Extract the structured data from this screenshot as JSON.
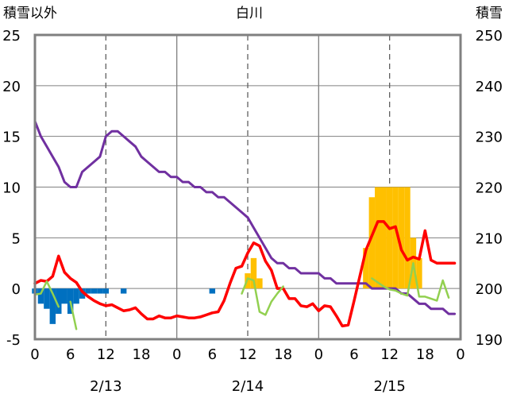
{
  "chart_data": {
    "type": "line",
    "title": "白川",
    "y_left_label": "積雪以外",
    "y_right_label": "積雪",
    "y_left_range": [
      -5,
      25
    ],
    "y_left_ticks": [
      -5,
      0,
      5,
      10,
      15,
      20,
      25
    ],
    "y_right_range": [
      190,
      250
    ],
    "y_right_ticks": [
      190,
      200,
      210,
      220,
      230,
      240,
      250
    ],
    "x_range_hours": [
      0,
      72
    ],
    "x_tick_labels": [
      "0",
      "6",
      "12",
      "18",
      "0",
      "6",
      "12",
      "18",
      "0",
      "6",
      "12",
      "18",
      "0"
    ],
    "date_labels": [
      "2/13",
      "2/14",
      "2/15"
    ],
    "grid": true,
    "colors": {
      "temperature": "#ff0000",
      "snow_depth": "#7030a0",
      "snowfall": "#ffc000",
      "rainfall": "#0070c0",
      "wind": "#92d050",
      "grid_solid": "#808080",
      "grid_dashed": "#606060",
      "frame": "#808080"
    },
    "series": [
      {
        "key": "snow_depth",
        "axis": "right",
        "kind": "line",
        "x": [
          0,
          1,
          2,
          3,
          4,
          5,
          6,
          7,
          8,
          9,
          10,
          11,
          12,
          13,
          14,
          15,
          16,
          17,
          18,
          19,
          20,
          21,
          22,
          23,
          24,
          25,
          26,
          27,
          28,
          29,
          30,
          31,
          32,
          33,
          34,
          35,
          36,
          37,
          38,
          39,
          40,
          41,
          42,
          43,
          44,
          45,
          46,
          47,
          48,
          49,
          50,
          51,
          52,
          53,
          54,
          55,
          56,
          57,
          58,
          59,
          60,
          61,
          62,
          63,
          64,
          65,
          66,
          67,
          68,
          69,
          70,
          71
        ],
        "values": [
          233,
          230,
          228,
          226,
          224,
          221,
          220,
          220,
          223,
          224,
          225,
          226,
          230,
          231,
          231,
          230,
          229,
          228,
          226,
          225,
          224,
          223,
          223,
          222,
          222,
          221,
          221,
          220,
          220,
          219,
          219,
          218,
          218,
          217,
          216,
          215,
          214,
          212,
          210,
          208,
          206,
          205,
          205,
          204,
          204,
          203,
          203,
          203,
          203,
          202,
          202,
          201,
          201,
          201,
          201,
          201,
          201,
          200,
          200,
          200,
          200,
          200,
          199,
          199,
          198,
          197,
          197,
          196,
          196,
          196,
          195,
          195
        ]
      },
      {
        "key": "temperature",
        "axis": "left",
        "kind": "line",
        "x": [
          0,
          1,
          2,
          3,
          4,
          5,
          6,
          7,
          8,
          9,
          10,
          11,
          12,
          13,
          14,
          15,
          16,
          17,
          18,
          19,
          20,
          21,
          22,
          23,
          24,
          25,
          26,
          27,
          28,
          29,
          30,
          31,
          32,
          33,
          34,
          35,
          36,
          37,
          38,
          39,
          40,
          41,
          42,
          43,
          44,
          45,
          46,
          47,
          48,
          49,
          50,
          51,
          52,
          53,
          54,
          55,
          56,
          57,
          58,
          59,
          60,
          61,
          62,
          63,
          64,
          65,
          66,
          67,
          68,
          69,
          70,
          71
        ],
        "values": [
          0.5,
          0.8,
          0.7,
          1.2,
          3.2,
          1.6,
          1.0,
          0.6,
          -0.3,
          -0.8,
          -1.2,
          -1.5,
          -1.7,
          -1.6,
          -1.9,
          -2.2,
          -2.1,
          -1.9,
          -2.5,
          -3.0,
          -3.0,
          -2.7,
          -2.9,
          -2.9,
          -2.7,
          -2.8,
          -2.9,
          -2.9,
          -2.8,
          -2.6,
          -2.4,
          -2.3,
          -1.2,
          0.5,
          2.0,
          2.2,
          3.5,
          4.5,
          4.2,
          2.7,
          1.8,
          0.0,
          0.0,
          -1.0,
          -1.0,
          -1.7,
          -1.8,
          -1.5,
          -2.2,
          -1.7,
          -1.8,
          -2.7,
          -3.7,
          -3.6,
          -1.2,
          1.3,
          3.8,
          5.2,
          6.6,
          6.6,
          5.9,
          6.1,
          3.8,
          2.8,
          3.1,
          2.9,
          5.7,
          2.8,
          2.5,
          2.5,
          2.5,
          2.5
        ]
      },
      {
        "key": "wind",
        "axis": "left",
        "kind": "line",
        "x": [
          0,
          1,
          2,
          3,
          4,
          null,
          6,
          7,
          null,
          35,
          36,
          37,
          38,
          39,
          40,
          41,
          42,
          null,
          57,
          58,
          59,
          60,
          61,
          62,
          63,
          64,
          65,
          66,
          67,
          68,
          69,
          70
        ],
        "values": [
          -0.6,
          -0.5,
          0.7,
          -0.5,
          -1.8,
          null,
          -1.3,
          -4.0,
          null,
          -0.5,
          1.0,
          0.8,
          -2.3,
          -2.6,
          -1.3,
          -0.5,
          0.2,
          null,
          1.0,
          0.6,
          0.2,
          -0.1,
          -0.2,
          -0.5,
          -0.7,
          2.5,
          -0.8,
          -0.8,
          -1.0,
          -1.2,
          0.8,
          -0.9
        ]
      },
      {
        "key": "rainfall",
        "axis": "left",
        "kind": "bar_down",
        "x": [
          0,
          1,
          2,
          3,
          4,
          5,
          6,
          7,
          8,
          9,
          10,
          11,
          12,
          15,
          30
        ],
        "values": [
          0.5,
          1.5,
          2.0,
          3.5,
          2.5,
          1.5,
          2.5,
          1.5,
          1.0,
          0.5,
          0.5,
          0.5,
          0.5,
          0.5,
          0.5
        ]
      },
      {
        "key": "snowfall",
        "axis": "left",
        "kind": "bar_up",
        "x": [
          36,
          37,
          38,
          56,
          57,
          58,
          59,
          60,
          61,
          62,
          63,
          64,
          65
        ],
        "values": [
          1.5,
          3.0,
          1.0,
          4.0,
          9.0,
          10.0,
          10.0,
          10.0,
          10.0,
          10.0,
          10.0,
          5.0,
          3.0
        ]
      }
    ]
  }
}
